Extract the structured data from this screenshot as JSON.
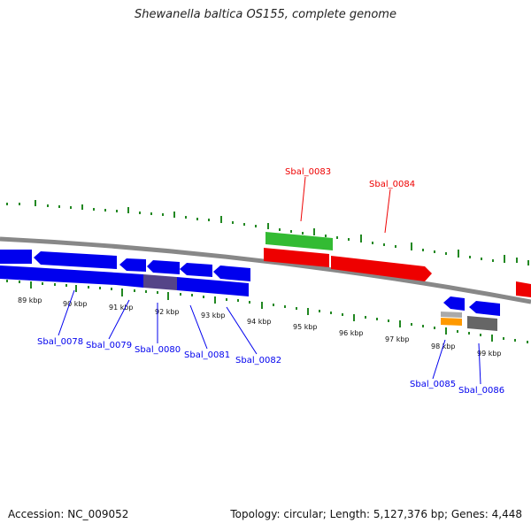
{
  "title": "Shewanella baltica OS155, complete genome",
  "footer": {
    "accession": "Accession: NC_009052",
    "summary": "Topology: circular; Length: 5,127,376 bp; Genes: 4,448"
  },
  "scale_labels": [
    "89 kbp",
    "90 kbp",
    "91 kbp",
    "92 kbp",
    "93 kbp",
    "94 kbp",
    "95 kbp",
    "96 kbp",
    "97 kbp",
    "98 kbp",
    "99 kbp"
  ],
  "genes": [
    {
      "name": "Sbal_0078",
      "strand": "minus"
    },
    {
      "name": "Sbal_0079",
      "strand": "minus"
    },
    {
      "name": "Sbal_0080",
      "strand": "minus"
    },
    {
      "name": "Sbal_0081",
      "strand": "minus"
    },
    {
      "name": "Sbal_0082",
      "strand": "minus"
    },
    {
      "name": "Sbal_0083",
      "strand": "plus"
    },
    {
      "name": "Sbal_0084",
      "strand": "plus"
    },
    {
      "name": "Sbal_0085",
      "strand": "minus"
    },
    {
      "name": "Sbal_0086",
      "strand": "minus"
    }
  ],
  "colors": {
    "forward_feature": "#ee0000",
    "reverse_feature": "#0000ee",
    "rna_feature": "#33bb33",
    "gc_skew_feature": "#ff9900",
    "other_feature": "#777777",
    "backbone": "#888888",
    "tick": "#228822"
  }
}
